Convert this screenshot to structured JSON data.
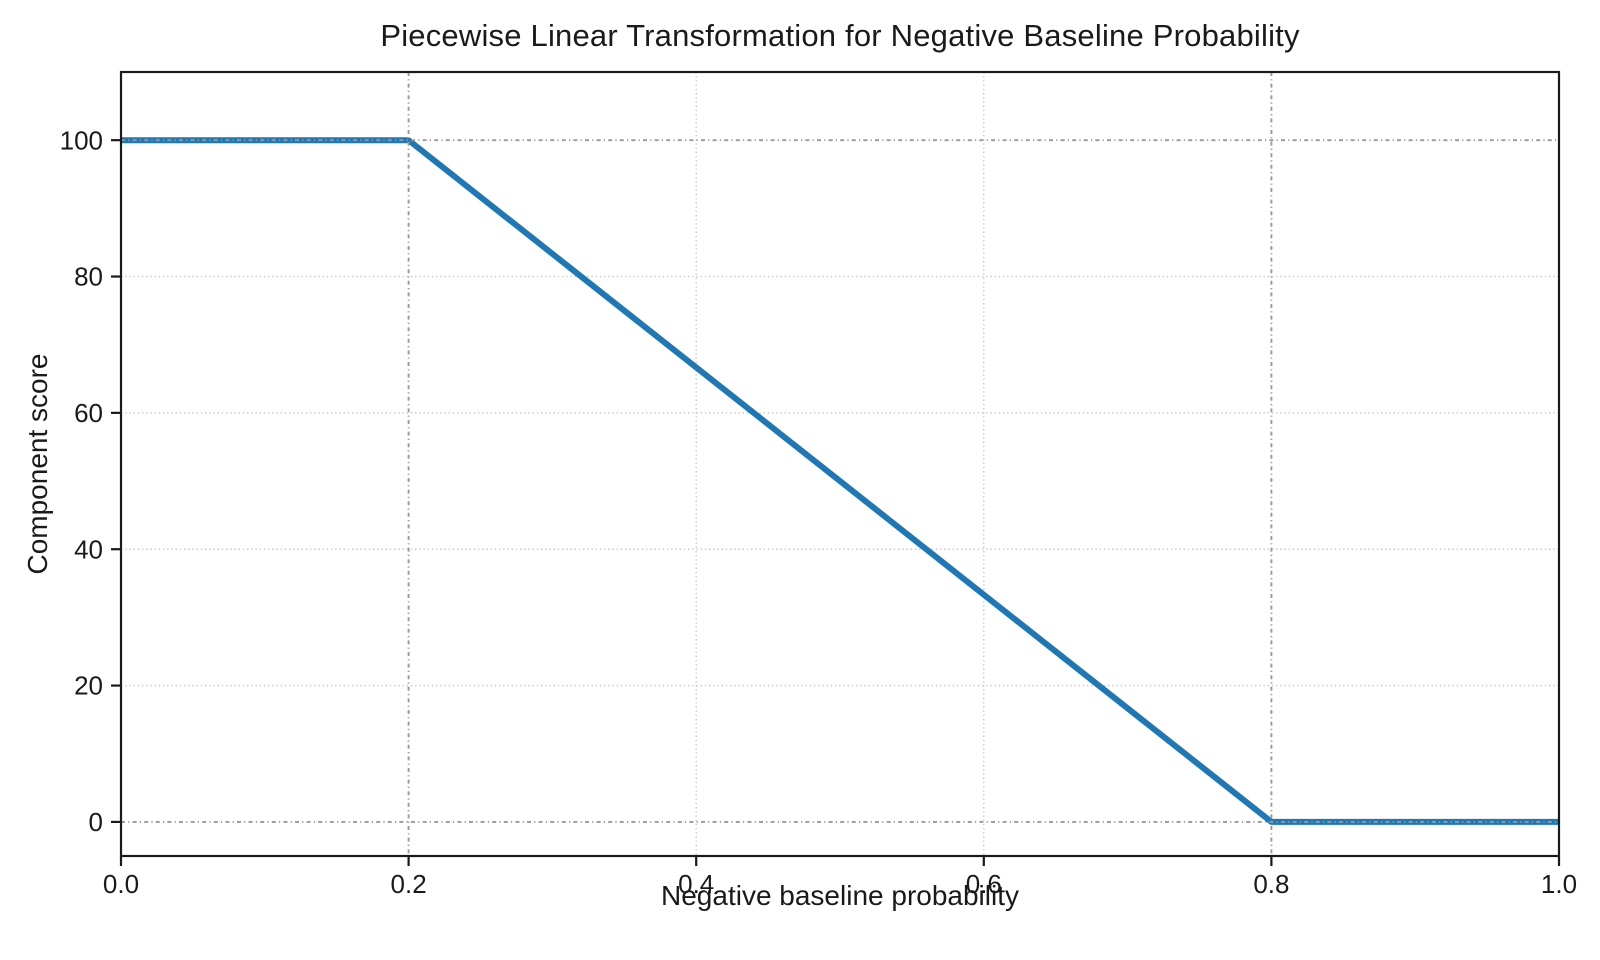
{
  "chart_data": {
    "type": "line",
    "title": "Piecewise Linear Transformation for Negative Baseline Probability",
    "xlabel": "Negative baseline probability",
    "ylabel": "Component score",
    "series": [
      {
        "name": "component-score",
        "color": "#1f77b4",
        "linewidth": 6,
        "points": [
          [
            0.0,
            100
          ],
          [
            0.2,
            100
          ],
          [
            0.8,
            0
          ],
          [
            1.0,
            0
          ]
        ]
      }
    ],
    "xlim": [
      0.0,
      1.0
    ],
    "ylim": [
      -5,
      110
    ],
    "xticks": [
      0.0,
      0.2,
      0.4,
      0.6,
      0.8,
      1.0
    ],
    "xtick_labels": [
      "0.0",
      "0.2",
      "0.4",
      "0.6",
      "0.8",
      "1.0"
    ],
    "yticks": [
      0,
      20,
      40,
      60,
      80,
      100
    ],
    "ytick_labels": [
      "0",
      "20",
      "40",
      "60",
      "80",
      "100"
    ],
    "grid": {
      "on": true,
      "color": "#c9c9c9",
      "style": "dotted"
    },
    "reference_lines": {
      "x": [
        0.2,
        0.8
      ],
      "y": [
        0,
        100
      ],
      "color": "#999999",
      "style": "dashdot"
    },
    "frame_color": "#1a1a1a",
    "background": "#ffffff",
    "legend": null
  }
}
